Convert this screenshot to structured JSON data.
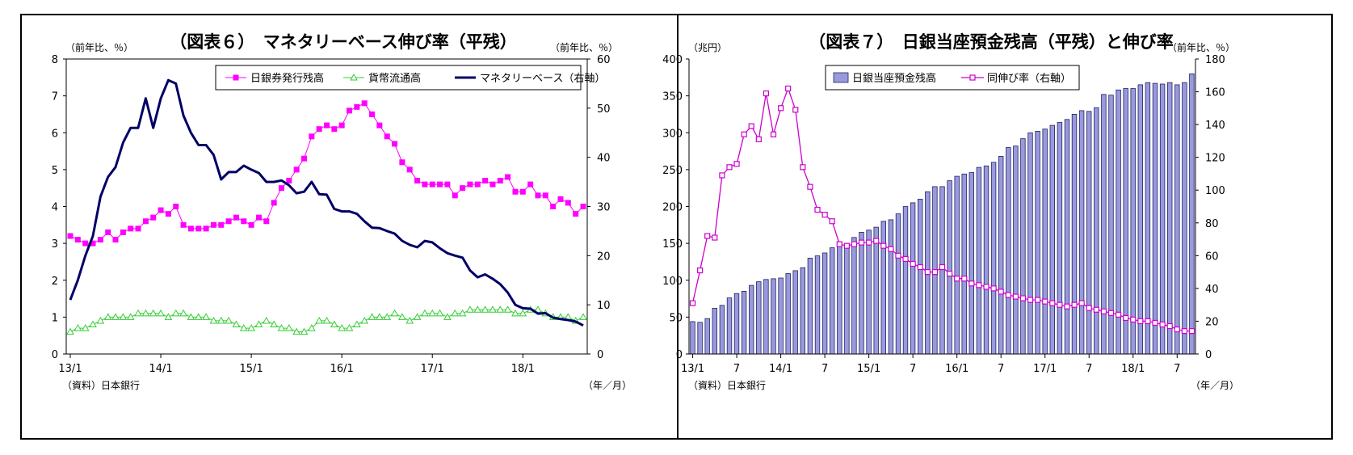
{
  "charts": [
    {
      "title": "（図表６）　マネタリーベース伸び率（平残）",
      "left_unit": "（前年比、％）",
      "right_unit": "（前年比、％）",
      "source": "（資料）日本銀行",
      "xunit": "（年／月）"
    },
    {
      "title": "（図表７）　日銀当座預金残高（平残）と伸び率",
      "left_unit": "（兆円）",
      "right_unit": "（前年比、％）",
      "source": "（資料）日本銀行",
      "xunit": "（年／月）"
    }
  ],
  "chart_data": [
    {
      "type": "line",
      "title": "（図表６）　マネタリーベース伸び率（平残）",
      "x": [
        "13/1",
        "13/2",
        "13/3",
        "13/4",
        "13/5",
        "13/6",
        "13/7",
        "13/8",
        "13/9",
        "13/10",
        "13/11",
        "13/12",
        "14/1",
        "14/2",
        "14/3",
        "14/4",
        "14/5",
        "14/6",
        "14/7",
        "14/8",
        "14/9",
        "14/10",
        "14/11",
        "14/12",
        "15/1",
        "15/2",
        "15/3",
        "15/4",
        "15/5",
        "15/6",
        "15/7",
        "15/8",
        "15/9",
        "15/10",
        "15/11",
        "15/12",
        "16/1",
        "16/2",
        "16/3",
        "16/4",
        "16/5",
        "16/6",
        "16/7",
        "16/8",
        "16/9",
        "16/10",
        "16/11",
        "16/12",
        "17/1",
        "17/2",
        "17/3",
        "17/4",
        "17/5",
        "17/6",
        "17/7",
        "17/8",
        "17/9",
        "17/10",
        "17/11",
        "17/12",
        "18/1",
        "18/2",
        "18/3",
        "18/4",
        "18/5",
        "18/6",
        "18/7",
        "18/8",
        "18/9"
      ],
      "x_tick_labels": [
        "13/1",
        "14/1",
        "15/1",
        "16/1",
        "17/1",
        "18/1"
      ],
      "ylim_left": [
        0,
        8
      ],
      "y_ticks_left": [
        0,
        1,
        2,
        3,
        4,
        5,
        6,
        7,
        8
      ],
      "ylim_right": [
        0,
        60
      ],
      "y_ticks_right": [
        0,
        10,
        20,
        30,
        40,
        50,
        60
      ],
      "legend_position": "top-right",
      "series": [
        {
          "name": "日銀券発行残高",
          "axis": "left",
          "color": "#ff00ff",
          "marker": "square",
          "values": [
            3.2,
            3.1,
            3.0,
            3.0,
            3.1,
            3.3,
            3.1,
            3.3,
            3.4,
            3.4,
            3.6,
            3.7,
            3.9,
            3.8,
            4.0,
            3.5,
            3.4,
            3.4,
            3.4,
            3.5,
            3.5,
            3.6,
            3.7,
            3.6,
            3.5,
            3.7,
            3.6,
            4.1,
            4.5,
            4.7,
            5.0,
            5.3,
            5.9,
            6.1,
            6.2,
            6.1,
            6.2,
            6.6,
            6.7,
            6.8,
            6.5,
            6.2,
            5.9,
            5.7,
            5.2,
            5.0,
            4.7,
            4.6,
            4.6,
            4.6,
            4.6,
            4.3,
            4.5,
            4.6,
            4.6,
            4.7,
            4.6,
            4.7,
            4.8,
            4.4,
            4.4,
            4.6,
            4.3,
            4.3,
            4.0,
            4.2,
            4.1,
            3.8,
            4.0
          ]
        },
        {
          "name": "貨幣流通高",
          "axis": "left",
          "color": "#33cc33",
          "marker": "triangle",
          "values": [
            0.6,
            0.7,
            0.7,
            0.8,
            0.9,
            1.0,
            1.0,
            1.0,
            1.0,
            1.1,
            1.1,
            1.1,
            1.1,
            1.0,
            1.1,
            1.1,
            1.0,
            1.0,
            1.0,
            0.9,
            0.9,
            0.9,
            0.8,
            0.7,
            0.7,
            0.8,
            0.9,
            0.8,
            0.7,
            0.7,
            0.6,
            0.6,
            0.7,
            0.9,
            0.9,
            0.8,
            0.7,
            0.7,
            0.8,
            0.9,
            1.0,
            1.0,
            1.0,
            1.1,
            1.0,
            0.9,
            1.0,
            1.1,
            1.1,
            1.1,
            1.0,
            1.1,
            1.1,
            1.2,
            1.2,
            1.2,
            1.2,
            1.2,
            1.2,
            1.1,
            1.1,
            1.2,
            1.2,
            1.1,
            1.0,
            1.0,
            1.0,
            0.9,
            1.0
          ]
        },
        {
          "name": "マネタリーベース（右軸）",
          "axis": "right",
          "color": "#000066",
          "marker": "none",
          "values": [
            11,
            15,
            20,
            24,
            32,
            36,
            38,
            43,
            46,
            46,
            52,
            46,
            52,
            55.7,
            55,
            48.5,
            45,
            42.5,
            42.5,
            40.5,
            35.5,
            37,
            37,
            38.3,
            37.5,
            36.8,
            35,
            35,
            35.3,
            34.3,
            32.7,
            33,
            35,
            32.5,
            32.4,
            29.5,
            29,
            29,
            28.5,
            27,
            25.7,
            25.6,
            25,
            24.5,
            23,
            22.2,
            21.7,
            23,
            22.7,
            21.5,
            20.5,
            20,
            19.6,
            17,
            15.6,
            16.2,
            15.3,
            14.2,
            12.5,
            10,
            9.3,
            9.2,
            8.2,
            8.3,
            7.4,
            7.1,
            6.9,
            6.6,
            5.8
          ]
        }
      ]
    },
    {
      "type": "bar",
      "title": "（図表７）　日銀当座預金残高（平残）と伸び率",
      "x": [
        "13/1",
        "13/2",
        "13/3",
        "13/4",
        "13/5",
        "13/6",
        "13/7",
        "13/8",
        "13/9",
        "13/10",
        "13/11",
        "13/12",
        "14/1",
        "14/2",
        "14/3",
        "14/4",
        "14/5",
        "14/6",
        "14/7",
        "14/8",
        "14/9",
        "14/10",
        "14/11",
        "14/12",
        "15/1",
        "15/2",
        "15/3",
        "15/4",
        "15/5",
        "15/6",
        "15/7",
        "15/8",
        "15/9",
        "15/10",
        "15/11",
        "15/12",
        "16/1",
        "16/2",
        "16/3",
        "16/4",
        "16/5",
        "16/6",
        "16/7",
        "16/8",
        "16/9",
        "16/10",
        "16/11",
        "16/12",
        "17/1",
        "17/2",
        "17/3",
        "17/4",
        "17/5",
        "17/6",
        "17/7",
        "17/8",
        "17/9",
        "17/10",
        "17/11",
        "17/12",
        "18/1",
        "18/2",
        "18/3",
        "18/4",
        "18/5",
        "18/6",
        "18/7",
        "18/8",
        "18/9"
      ],
      "x_tick_labels": [
        "13/1",
        "7",
        "14/1",
        "7",
        "15/1",
        "7",
        "16/1",
        "7",
        "17/1",
        "7",
        "18/1",
        "7"
      ],
      "ylim_left": [
        0,
        400
      ],
      "y_ticks_left": [
        0,
        50,
        100,
        150,
        200,
        250,
        300,
        350,
        400
      ],
      "ylim_right": [
        0,
        180
      ],
      "y_ticks_right": [
        0,
        20,
        40,
        60,
        80,
        100,
        120,
        140,
        160,
        180
      ],
      "legend_position": "top-center",
      "series": [
        {
          "name": "日銀当座預金残高",
          "axis": "left",
          "type": "bar",
          "color": "#9999dd",
          "values": [
            44,
            43,
            48,
            62,
            66,
            76,
            82,
            85,
            93,
            98,
            101,
            102,
            103,
            109,
            113,
            117,
            130,
            133,
            137,
            144,
            152,
            150,
            158,
            165,
            168,
            172,
            180,
            182,
            190,
            200,
            205,
            210,
            220,
            227,
            227,
            235,
            241,
            244,
            246,
            253,
            255,
            260,
            268,
            280,
            282,
            292,
            300,
            302,
            305,
            310,
            314,
            318,
            325,
            330,
            329,
            334,
            352,
            351,
            358,
            360,
            360,
            365,
            368,
            367,
            366,
            368,
            365,
            368,
            380
          ]
        },
        {
          "name": "同伸び率（右軸）",
          "axis": "right",
          "type": "line",
          "color": "#cc00cc",
          "marker": "square",
          "values": [
            31,
            51,
            72,
            71,
            109,
            114,
            116,
            134,
            139,
            131,
            159,
            134,
            150,
            162,
            149,
            114,
            102,
            88,
            85,
            81,
            67,
            66,
            67,
            68,
            68,
            69,
            66,
            64,
            60,
            58,
            55,
            53,
            50,
            50,
            53,
            49,
            46,
            46,
            43,
            42,
            41,
            40,
            38,
            36,
            35,
            34,
            33,
            33,
            32,
            31,
            30,
            29,
            30,
            31,
            28,
            27,
            26,
            25,
            24,
            22,
            21,
            20,
            20,
            19,
            18,
            17,
            15,
            14,
            14
          ]
        }
      ]
    }
  ]
}
